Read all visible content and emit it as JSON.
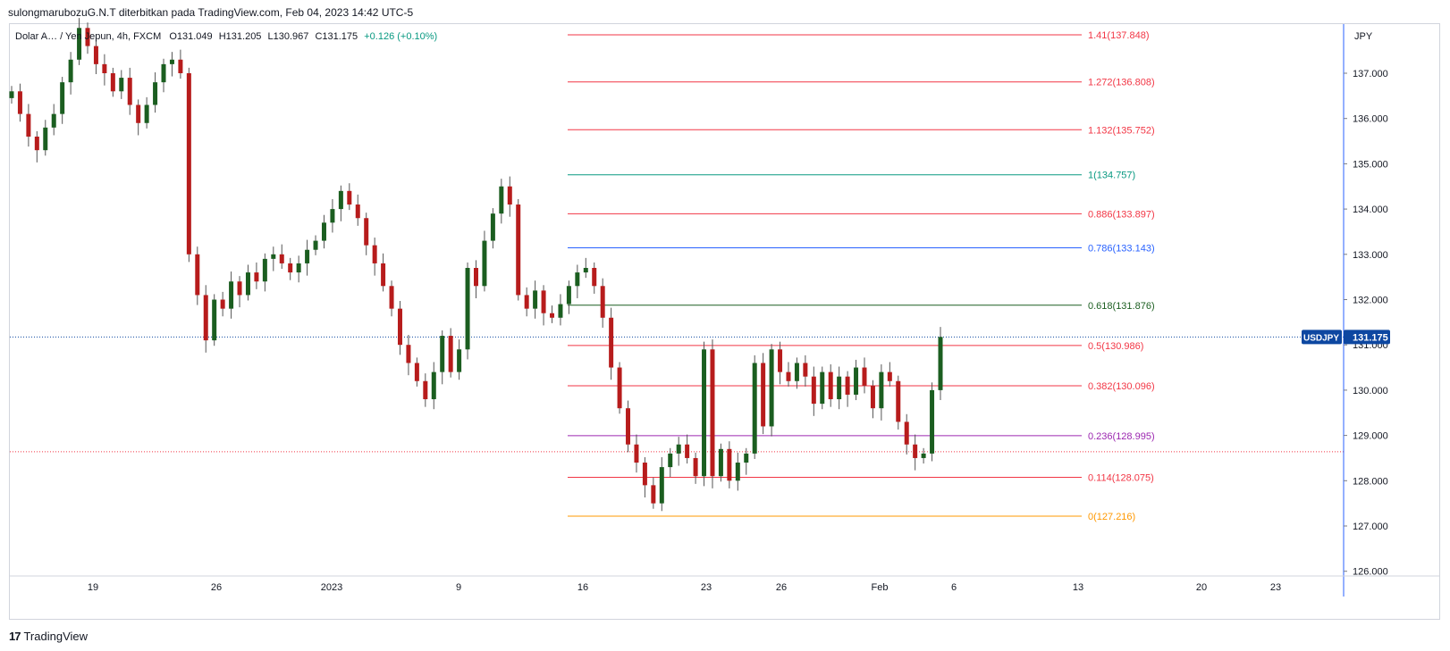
{
  "header": {
    "attribution": "sulongmarubozuG.N.T diterbitkan pada TradingView.com, Feb 04, 2023 14:42 UTC-5"
  },
  "legend": {
    "symbol": "Dolar A… / Yen Jepun, 4h, FXCM",
    "open": "O131.049",
    "high": "H131.205",
    "low": "L130.967",
    "close": "C131.175",
    "change": "+0.126 (+0.10%)"
  },
  "footer": {
    "brand": "TradingView",
    "logo_icon": "tradingview-logo-icon"
  },
  "colors": {
    "up": "#1b5e20",
    "down": "#b71c1c",
    "axis": "#2962ff",
    "price_tag": "#0d47a1"
  },
  "chart_data": {
    "type": "candlestick",
    "symbol": "USDJPY",
    "timeframe": "4h",
    "currency": "JPY",
    "y_ticks": [
      "137.000",
      "136.000",
      "135.000",
      "134.000",
      "133.000",
      "132.000",
      "131.000",
      "130.000",
      "129.000",
      "128.000",
      "127.000",
      "126.000"
    ],
    "ylim": [
      125.9,
      138.1
    ],
    "x_ticks": [
      "19",
      "26",
      "2023",
      "9",
      "16",
      "23",
      "26",
      "Feb",
      "6",
      "13",
      "20",
      "23"
    ],
    "last_price": {
      "label": "USDJPY",
      "value": "131.175"
    },
    "fibonacci_levels": [
      {
        "label": "1.41(137.848)",
        "value": 137.848,
        "color": "#f23645"
      },
      {
        "label": "1.272(136.808)",
        "value": 136.808,
        "color": "#f23645"
      },
      {
        "label": "1.132(135.752)",
        "value": 135.752,
        "color": "#f23645"
      },
      {
        "label": "1(134.757)",
        "value": 134.757,
        "color": "#089981"
      },
      {
        "label": "0.886(133.897)",
        "value": 133.897,
        "color": "#f23645"
      },
      {
        "label": "0.786(133.143)",
        "value": 133.143,
        "color": "#2962ff"
      },
      {
        "label": "0.618(131.876)",
        "value": 131.876,
        "color": "#1b5e20"
      },
      {
        "label": "0.5(130.986)",
        "value": 130.986,
        "color": "#f23645"
      },
      {
        "label": "0.382(130.096)",
        "value": 130.096,
        "color": "#f23645"
      },
      {
        "label": "0.236(128.995)",
        "value": 128.995,
        "color": "#9c27b0"
      },
      {
        "label": "0.114(128.075)",
        "value": 128.075,
        "color": "#f23645"
      },
      {
        "label": "0(127.216)",
        "value": 127.216,
        "color": "#ff9800"
      }
    ],
    "reference_lines": [
      {
        "value": 131.175,
        "style": "dotted",
        "color": "#0d47a1"
      },
      {
        "value": 128.64,
        "style": "dotted",
        "color": "#f23645"
      }
    ],
    "price_path": [
      136.6,
      136.1,
      135.6,
      135.3,
      135.8,
      136.1,
      136.8,
      137.3,
      138.0,
      137.6,
      137.2,
      137.0,
      136.6,
      136.9,
      136.3,
      135.9,
      136.3,
      136.8,
      137.2,
      137.3,
      137.0,
      133.0,
      132.1,
      131.1,
      132.0,
      131.8,
      132.4,
      132.1,
      132.6,
      132.4,
      132.9,
      133.0,
      132.8,
      132.6,
      132.8,
      133.1,
      133.3,
      133.7,
      134.0,
      134.4,
      134.1,
      133.8,
      133.2,
      132.8,
      132.3,
      131.8,
      131.0,
      130.6,
      130.2,
      129.8,
      130.4,
      131.2,
      130.4,
      130.9,
      132.7,
      132.3,
      133.3,
      133.9,
      134.5,
      134.1,
      132.1,
      131.8,
      132.2,
      131.7,
      131.6,
      131.9,
      132.3,
      132.6,
      132.7,
      132.3,
      131.6,
      130.5,
      129.6,
      128.8,
      128.4,
      127.9,
      127.5,
      128.3,
      128.6,
      128.8,
      128.5,
      128.1,
      130.9,
      128.1,
      128.7,
      128.0,
      128.4,
      128.6,
      130.6,
      129.2,
      130.9,
      130.4,
      130.2,
      130.6,
      130.3,
      129.7,
      130.4,
      129.8,
      130.3,
      129.9,
      130.5,
      130.1,
      129.6,
      130.4,
      130.2,
      129.3,
      128.8,
      128.5,
      128.6,
      130.0,
      131.175
    ]
  }
}
